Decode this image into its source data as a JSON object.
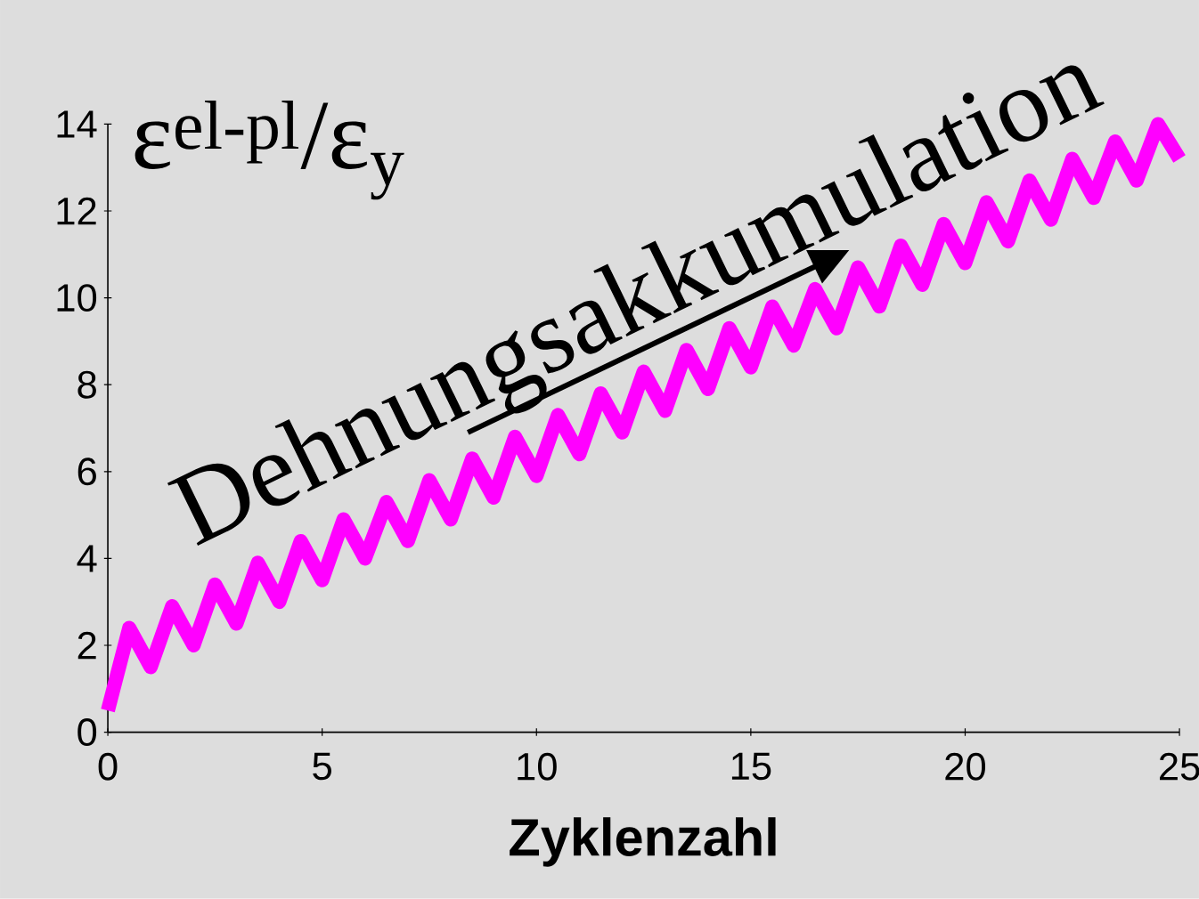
{
  "chart_data": {
    "type": "line",
    "xlabel": "Zyklenzahl",
    "ylabel": "ε$^{el-pl}$/ε$_{y}$",
    "annotations": [
      "Dehnungsakkumulation"
    ],
    "xlim": [
      0,
      25
    ],
    "ylim": [
      0,
      14
    ],
    "xticks": [
      0,
      5,
      10,
      15,
      20,
      25
    ],
    "yticks": [
      0,
      2,
      4,
      6,
      8,
      10,
      12,
      14
    ],
    "series": [
      {
        "color": "#ff00ff",
        "x": [
          0,
          0.5,
          1,
          1.5,
          2,
          2.5,
          3,
          3.5,
          4,
          4.5,
          5,
          5.5,
          6,
          6.5,
          7,
          7.5,
          8,
          8.5,
          9,
          9.5,
          10,
          10.5,
          11,
          11.5,
          12,
          12.5,
          13,
          13.5,
          14,
          14.5,
          15,
          15.5,
          16,
          16.5,
          17,
          17.5,
          18,
          18.5,
          19,
          19.5,
          20,
          20.5,
          21,
          21.5,
          22,
          22.5,
          23,
          23.5,
          24,
          24.5,
          25
        ],
        "values": [
          0.5,
          2.4,
          1.5,
          2.9,
          2.0,
          3.4,
          2.5,
          3.9,
          3.0,
          4.4,
          3.5,
          4.9,
          4.0,
          5.3,
          4.4,
          5.8,
          4.9,
          6.3,
          5.4,
          6.8,
          5.9,
          7.3,
          6.4,
          7.8,
          6.9,
          8.3,
          7.4,
          8.8,
          7.9,
          9.3,
          8.4,
          9.8,
          8.9,
          10.2,
          9.3,
          10.7,
          9.8,
          11.2,
          10.3,
          11.7,
          10.8,
          12.2,
          11.3,
          12.7,
          11.8,
          13.2,
          12.3,
          13.6,
          12.7,
          14.0,
          13.2
        ]
      }
    ]
  }
}
